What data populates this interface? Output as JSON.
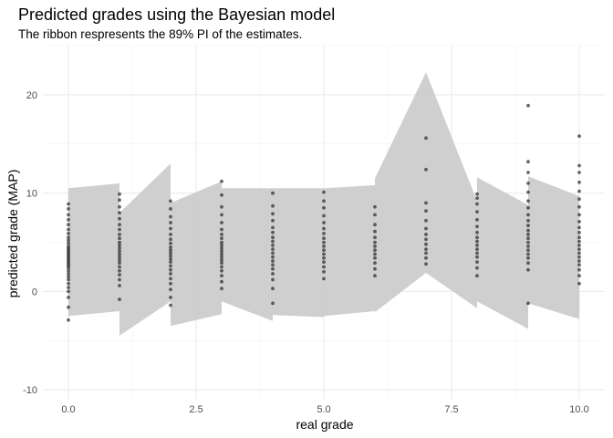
{
  "chart_data": {
    "type": "scatter",
    "title": "Predicted grades using the Bayesian model",
    "subtitle": "The ribbon respresents the 89% PI of the estimates.",
    "xlabel": "real grade",
    "ylabel": "predicted grade (MAP)",
    "xlim": [
      -0.5,
      10.5
    ],
    "ylim": [
      -11,
      25
    ],
    "x_ticks": [
      0,
      2.5,
      5,
      7.5,
      10
    ],
    "x_tick_labels": [
      "0.0",
      "2.5",
      "5.0",
      "7.5",
      "10.0"
    ],
    "y_ticks": [
      -10,
      0,
      10,
      20
    ],
    "y_tick_labels": [
      "-10",
      "0",
      "10",
      "20"
    ],
    "grid": true,
    "ribbon": {
      "color": "#cccccc",
      "x": [
        0,
        1,
        1,
        2,
        2,
        3,
        3,
        4,
        4,
        5,
        5,
        6,
        6,
        7,
        7,
        8,
        8,
        9,
        9,
        10
      ],
      "upper": [
        10.5,
        11,
        8,
        13,
        9,
        11.2,
        10.5,
        10.5,
        10.5,
        10.5,
        10.5,
        10.8,
        11.5,
        22.3,
        22.3,
        9.2,
        11.6,
        8.8,
        11.7,
        9.7
      ],
      "lower": [
        -2.5,
        -2,
        -4.5,
        -1,
        -3.5,
        -2.3,
        -1,
        -3,
        -2.4,
        -2.6,
        -2.5,
        -2,
        -2.1,
        1.9,
        1.9,
        -1.7,
        -1,
        -3.8,
        -1.2,
        -2.8
      ]
    },
    "series": [
      {
        "color": "#1a1a1a",
        "points": [
          {
            "x": 0,
            "y": -2.9
          },
          {
            "x": 0,
            "y": -1.6
          },
          {
            "x": 0,
            "y": -0.6
          },
          {
            "x": 0,
            "y": 0
          },
          {
            "x": 0,
            "y": 0.4
          },
          {
            "x": 0,
            "y": 0.8
          },
          {
            "x": 0,
            "y": 1.2
          },
          {
            "x": 0,
            "y": 1.5
          },
          {
            "x": 0,
            "y": 1.8
          },
          {
            "x": 0,
            "y": 2.1
          },
          {
            "x": 0,
            "y": 2.4
          },
          {
            "x": 0,
            "y": 2.6
          },
          {
            "x": 0,
            "y": 2.8
          },
          {
            "x": 0,
            "y": 3.0
          },
          {
            "x": 0,
            "y": 3.2
          },
          {
            "x": 0,
            "y": 3.4
          },
          {
            "x": 0,
            "y": 3.6
          },
          {
            "x": 0,
            "y": 3.8
          },
          {
            "x": 0,
            "y": 4.0
          },
          {
            "x": 0,
            "y": 4.2
          },
          {
            "x": 0,
            "y": 4.4
          },
          {
            "x": 0,
            "y": 4.6
          },
          {
            "x": 0,
            "y": 4.9
          },
          {
            "x": 0,
            "y": 5.2
          },
          {
            "x": 0,
            "y": 5.5
          },
          {
            "x": 0,
            "y": 5.9
          },
          {
            "x": 0,
            "y": 6.3
          },
          {
            "x": 0,
            "y": 6.8
          },
          {
            "x": 0,
            "y": 7.3
          },
          {
            "x": 0,
            "y": 7.8
          },
          {
            "x": 0,
            "y": 8.4
          },
          {
            "x": 0,
            "y": 8.9
          },
          {
            "x": 1,
            "y": -0.8
          },
          {
            "x": 1,
            "y": 0.6
          },
          {
            "x": 1,
            "y": 1.2
          },
          {
            "x": 1,
            "y": 1.7
          },
          {
            "x": 1,
            "y": 2.1
          },
          {
            "x": 1,
            "y": 2.5
          },
          {
            "x": 1,
            "y": 2.9
          },
          {
            "x": 1,
            "y": 3.2
          },
          {
            "x": 1,
            "y": 3.5
          },
          {
            "x": 1,
            "y": 3.8
          },
          {
            "x": 1,
            "y": 4.1
          },
          {
            "x": 1,
            "y": 4.4
          },
          {
            "x": 1,
            "y": 4.7
          },
          {
            "x": 1,
            "y": 5.0
          },
          {
            "x": 1,
            "y": 5.4
          },
          {
            "x": 1,
            "y": 5.8
          },
          {
            "x": 1,
            "y": 6.3
          },
          {
            "x": 1,
            "y": 6.8
          },
          {
            "x": 1,
            "y": 7.4
          },
          {
            "x": 1,
            "y": 8.0
          },
          {
            "x": 1,
            "y": 8.6
          },
          {
            "x": 1,
            "y": 9.3
          },
          {
            "x": 1,
            "y": 9.9
          },
          {
            "x": 2,
            "y": -1.4
          },
          {
            "x": 2,
            "y": -0.6
          },
          {
            "x": 2,
            "y": 0.2
          },
          {
            "x": 2,
            "y": 0.8
          },
          {
            "x": 2,
            "y": 1.3
          },
          {
            "x": 2,
            "y": 1.8
          },
          {
            "x": 2,
            "y": 2.2
          },
          {
            "x": 2,
            "y": 2.6
          },
          {
            "x": 2,
            "y": 3.0
          },
          {
            "x": 2,
            "y": 3.3
          },
          {
            "x": 2,
            "y": 3.6
          },
          {
            "x": 2,
            "y": 3.9
          },
          {
            "x": 2,
            "y": 4.2
          },
          {
            "x": 2,
            "y": 4.5
          },
          {
            "x": 2,
            "y": 4.9
          },
          {
            "x": 2,
            "y": 5.3
          },
          {
            "x": 2,
            "y": 5.8
          },
          {
            "x": 2,
            "y": 6.4
          },
          {
            "x": 2,
            "y": 7.0
          },
          {
            "x": 2,
            "y": 7.6
          },
          {
            "x": 2,
            "y": 8.4
          },
          {
            "x": 2,
            "y": 9.2
          },
          {
            "x": 3,
            "y": 0.3
          },
          {
            "x": 3,
            "y": 1.0
          },
          {
            "x": 3,
            "y": 1.6
          },
          {
            "x": 3,
            "y": 2.1
          },
          {
            "x": 3,
            "y": 2.5
          },
          {
            "x": 3,
            "y": 2.9
          },
          {
            "x": 3,
            "y": 3.2
          },
          {
            "x": 3,
            "y": 3.5
          },
          {
            "x": 3,
            "y": 3.8
          },
          {
            "x": 3,
            "y": 4.1
          },
          {
            "x": 3,
            "y": 4.4
          },
          {
            "x": 3,
            "y": 4.7
          },
          {
            "x": 3,
            "y": 5.0
          },
          {
            "x": 3,
            "y": 5.4
          },
          {
            "x": 3,
            "y": 5.8
          },
          {
            "x": 3,
            "y": 6.3
          },
          {
            "x": 3,
            "y": 7.0
          },
          {
            "x": 3,
            "y": 7.8
          },
          {
            "x": 3,
            "y": 8.6
          },
          {
            "x": 3,
            "y": 9.8
          },
          {
            "x": 3,
            "y": 11.2
          },
          {
            "x": 4,
            "y": -1.2
          },
          {
            "x": 4,
            "y": 0.3
          },
          {
            "x": 4,
            "y": 1.2
          },
          {
            "x": 4,
            "y": 1.8
          },
          {
            "x": 4,
            "y": 2.3
          },
          {
            "x": 4,
            "y": 2.7
          },
          {
            "x": 4,
            "y": 3.1
          },
          {
            "x": 4,
            "y": 3.5
          },
          {
            "x": 4,
            "y": 3.9
          },
          {
            "x": 4,
            "y": 4.3
          },
          {
            "x": 4,
            "y": 4.7
          },
          {
            "x": 4,
            "y": 5.1
          },
          {
            "x": 4,
            "y": 5.5
          },
          {
            "x": 4,
            "y": 6.0
          },
          {
            "x": 4,
            "y": 6.5
          },
          {
            "x": 4,
            "y": 7.2
          },
          {
            "x": 4,
            "y": 7.9
          },
          {
            "x": 4,
            "y": 8.7
          },
          {
            "x": 4,
            "y": 10.0
          },
          {
            "x": 5,
            "y": 1.3
          },
          {
            "x": 5,
            "y": 2.0
          },
          {
            "x": 5,
            "y": 2.5
          },
          {
            "x": 5,
            "y": 3.0
          },
          {
            "x": 5,
            "y": 3.4
          },
          {
            "x": 5,
            "y": 3.8
          },
          {
            "x": 5,
            "y": 4.2
          },
          {
            "x": 5,
            "y": 4.6
          },
          {
            "x": 5,
            "y": 5.0
          },
          {
            "x": 5,
            "y": 5.4
          },
          {
            "x": 5,
            "y": 5.9
          },
          {
            "x": 5,
            "y": 6.4
          },
          {
            "x": 5,
            "y": 7.0
          },
          {
            "x": 5,
            "y": 7.7
          },
          {
            "x": 5,
            "y": 8.5
          },
          {
            "x": 5,
            "y": 9.2
          },
          {
            "x": 5,
            "y": 10.1
          },
          {
            "x": 6,
            "y": 1.6
          },
          {
            "x": 6,
            "y": 2.3
          },
          {
            "x": 6,
            "y": 2.9
          },
          {
            "x": 6,
            "y": 3.4
          },
          {
            "x": 6,
            "y": 3.8
          },
          {
            "x": 6,
            "y": 4.2
          },
          {
            "x": 6,
            "y": 4.6
          },
          {
            "x": 6,
            "y": 5.0
          },
          {
            "x": 6,
            "y": 5.5
          },
          {
            "x": 6,
            "y": 6.1
          },
          {
            "x": 6,
            "y": 6.8
          },
          {
            "x": 6,
            "y": 7.8
          },
          {
            "x": 6,
            "y": 8.6
          },
          {
            "x": 7,
            "y": 2.8
          },
          {
            "x": 7,
            "y": 3.4
          },
          {
            "x": 7,
            "y": 3.9
          },
          {
            "x": 7,
            "y": 4.3
          },
          {
            "x": 7,
            "y": 4.8
          },
          {
            "x": 7,
            "y": 5.3
          },
          {
            "x": 7,
            "y": 5.8
          },
          {
            "x": 7,
            "y": 6.4
          },
          {
            "x": 7,
            "y": 7.2
          },
          {
            "x": 7,
            "y": 8.2
          },
          {
            "x": 7,
            "y": 9.0
          },
          {
            "x": 7,
            "y": 12.4
          },
          {
            "x": 7,
            "y": 15.6
          },
          {
            "x": 8,
            "y": 1.6
          },
          {
            "x": 8,
            "y": 2.4
          },
          {
            "x": 8,
            "y": 3.0
          },
          {
            "x": 8,
            "y": 3.5
          },
          {
            "x": 8,
            "y": 3.9
          },
          {
            "x": 8,
            "y": 4.3
          },
          {
            "x": 8,
            "y": 4.7
          },
          {
            "x": 8,
            "y": 5.1
          },
          {
            "x": 8,
            "y": 5.5
          },
          {
            "x": 8,
            "y": 6.0
          },
          {
            "x": 8,
            "y": 6.6
          },
          {
            "x": 8,
            "y": 7.3
          },
          {
            "x": 8,
            "y": 8.1
          },
          {
            "x": 8,
            "y": 8.9
          },
          {
            "x": 8,
            "y": 9.5
          },
          {
            "x": 8,
            "y": 9.9
          },
          {
            "x": 9,
            "y": -1.2
          },
          {
            "x": 9,
            "y": 2.2
          },
          {
            "x": 9,
            "y": 2.9
          },
          {
            "x": 9,
            "y": 3.4
          },
          {
            "x": 9,
            "y": 3.8
          },
          {
            "x": 9,
            "y": 4.2
          },
          {
            "x": 9,
            "y": 4.6
          },
          {
            "x": 9,
            "y": 5.0
          },
          {
            "x": 9,
            "y": 5.4
          },
          {
            "x": 9,
            "y": 5.8
          },
          {
            "x": 9,
            "y": 6.2
          },
          {
            "x": 9,
            "y": 6.7
          },
          {
            "x": 9,
            "y": 7.2
          },
          {
            "x": 9,
            "y": 7.8
          },
          {
            "x": 9,
            "y": 8.5
          },
          {
            "x": 9,
            "y": 9.2
          },
          {
            "x": 9,
            "y": 10.1
          },
          {
            "x": 9,
            "y": 11.0
          },
          {
            "x": 9,
            "y": 12.1
          },
          {
            "x": 9,
            "y": 13.2
          },
          {
            "x": 9,
            "y": 18.9
          },
          {
            "x": 10,
            "y": 0.8
          },
          {
            "x": 10,
            "y": 1.6
          },
          {
            "x": 10,
            "y": 2.2
          },
          {
            "x": 10,
            "y": 2.7
          },
          {
            "x": 10,
            "y": 3.1
          },
          {
            "x": 10,
            "y": 3.5
          },
          {
            "x": 10,
            "y": 3.9
          },
          {
            "x": 10,
            "y": 4.3
          },
          {
            "x": 10,
            "y": 4.7
          },
          {
            "x": 10,
            "y": 5.1
          },
          {
            "x": 10,
            "y": 5.5
          },
          {
            "x": 10,
            "y": 6.0
          },
          {
            "x": 10,
            "y": 6.5
          },
          {
            "x": 10,
            "y": 7.1
          },
          {
            "x": 10,
            "y": 7.8
          },
          {
            "x": 10,
            "y": 8.6
          },
          {
            "x": 10,
            "y": 9.4
          },
          {
            "x": 10,
            "y": 10.2
          },
          {
            "x": 10,
            "y": 11.1
          },
          {
            "x": 10,
            "y": 12.1
          },
          {
            "x": 10,
            "y": 12.8
          },
          {
            "x": 10,
            "y": 15.8
          }
        ]
      }
    ]
  }
}
